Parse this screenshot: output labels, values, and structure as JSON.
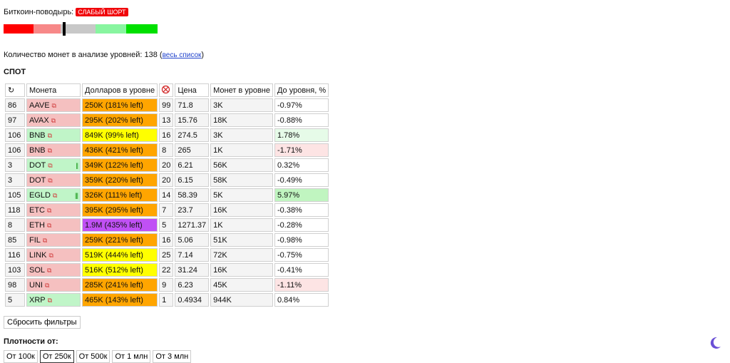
{
  "guide": {
    "label": "Биткоин-поводырь:",
    "badge": "СЛАБЫЙ ШОРТ"
  },
  "scale": {
    "segments": [
      "#ff0000",
      "#f78888",
      "#c8c8c8",
      "#c8c8c8",
      "#88f5a0",
      "#00e000"
    ],
    "marker_position": 0.386
  },
  "count": {
    "text": "Количество монет в анализе уровней: 138 (",
    "link": "весь список",
    "close": ")"
  },
  "spot_title": "СПОТ",
  "table": {
    "headers": {
      "refresh": "↻",
      "coin": "Монета",
      "dollars": "Долларов в уровне",
      "price": "Цена",
      "coins_in_level": "Монет в уровне",
      "to_level": "До уровня, %"
    },
    "rows": [
      {
        "rank": "86",
        "coin": "AAVE",
        "coin_bg": "#f5c0c0",
        "bars": "",
        "dollars": "250K (181% left)",
        "d_bg": "#ffa500",
        "n": "99",
        "price": "71.8",
        "coins": "3K",
        "pct": "-0.97%",
        "p_bg": "#ffffff"
      },
      {
        "rank": "97",
        "coin": "AVAX",
        "coin_bg": "#f5c0c0",
        "bars": "",
        "dollars": "295K (202% left)",
        "d_bg": "#ffa500",
        "n": "13",
        "price": "15.76",
        "coins": "18K",
        "pct": "-0.88%",
        "p_bg": "#ffffff"
      },
      {
        "rank": "106",
        "coin": "BNB",
        "coin_bg": "#c0f5c8",
        "bars": "",
        "dollars": "849K (99% left)",
        "d_bg": "#ffff00",
        "n": "16",
        "price": "274.5",
        "coins": "3K",
        "pct": "1.78%",
        "p_bg": "#e6fbe8"
      },
      {
        "rank": "106",
        "coin": "BNB",
        "coin_bg": "#f5c0c0",
        "bars": "",
        "dollars": "436K (421% left)",
        "d_bg": "#ffa500",
        "n": "8",
        "price": "265",
        "coins": "1K",
        "pct": "-1.71%",
        "p_bg": "#fde4e4"
      },
      {
        "rank": "3",
        "coin": "DOT",
        "coin_bg": "#c0f5c8",
        "bars": "||",
        "dollars": "349K (122% left)",
        "d_bg": "#ffa500",
        "n": "20",
        "price": "6.21",
        "coins": "56K",
        "pct": "0.32%",
        "p_bg": "#ffffff"
      },
      {
        "rank": "3",
        "coin": "DOT",
        "coin_bg": "#f5c0c0",
        "bars": "",
        "dollars": "359K (220% left)",
        "d_bg": "#ffa500",
        "n": "20",
        "price": "6.15",
        "coins": "58K",
        "pct": "-0.49%",
        "p_bg": "#ffffff"
      },
      {
        "rank": "105",
        "coin": "EGLD",
        "coin_bg": "#c0f5c8",
        "bars": "|||",
        "dollars": "326K (111% left)",
        "d_bg": "#ffa500",
        "n": "14",
        "price": "58.39",
        "coins": "5K",
        "pct": "5.97%",
        "p_bg": "#c0f5c0"
      },
      {
        "rank": "118",
        "coin": "ETC",
        "coin_bg": "#f5c0c0",
        "bars": "",
        "dollars": "395K (295% left)",
        "d_bg": "#ffa500",
        "n": "7",
        "price": "23.7",
        "coins": "16K",
        "pct": "-0.38%",
        "p_bg": "#ffffff"
      },
      {
        "rank": "8",
        "coin": "ETH",
        "coin_bg": "#f5c0c0",
        "bars": "",
        "dollars": "1.9M (435% left)",
        "d_bg": "#c050f5",
        "n": "5",
        "price": "1271.37",
        "coins": "1K",
        "pct": "-0.28%",
        "p_bg": "#ffffff"
      },
      {
        "rank": "85",
        "coin": "FIL",
        "coin_bg": "#f5c0c0",
        "bars": "",
        "dollars": "259K (221% left)",
        "d_bg": "#ffa500",
        "n": "16",
        "price": "5.06",
        "coins": "51K",
        "pct": "-0.98%",
        "p_bg": "#ffffff"
      },
      {
        "rank": "116",
        "coin": "LINK",
        "coin_bg": "#f5c0c0",
        "bars": "",
        "dollars": "519K (444% left)",
        "d_bg": "#ffff00",
        "n": "25",
        "price": "7.14",
        "coins": "72K",
        "pct": "-0.75%",
        "p_bg": "#ffffff"
      },
      {
        "rank": "103",
        "coin": "SOL",
        "coin_bg": "#f5c0c0",
        "bars": "",
        "dollars": "516K (512% left)",
        "d_bg": "#ffff00",
        "n": "22",
        "price": "31.24",
        "coins": "16K",
        "pct": "-0.41%",
        "p_bg": "#ffffff"
      },
      {
        "rank": "98",
        "coin": "UNI",
        "coin_bg": "#f5c0c0",
        "bars": "",
        "dollars": "285K (241% left)",
        "d_bg": "#ffa500",
        "n": "9",
        "price": "6.23",
        "coins": "45K",
        "pct": "-1.11%",
        "p_bg": "#fde4e4"
      },
      {
        "rank": "5",
        "coin": "XRP",
        "coin_bg": "#c0f5c8",
        "bars": "",
        "dollars": "465K (143% left)",
        "d_bg": "#ffa500",
        "n": "1",
        "price": "0.4934",
        "coins": "944K",
        "pct": "0.84%",
        "p_bg": "#ffffff"
      }
    ]
  },
  "reset_label": "Сбросить фильтры",
  "density": {
    "title": "Плотности от:",
    "options": [
      "От 100к",
      "От 250к",
      "От 500к",
      "От 1 млн",
      "От 3 млн"
    ],
    "selected_index": 1
  },
  "theme_toggle_icon": "moon-icon"
}
